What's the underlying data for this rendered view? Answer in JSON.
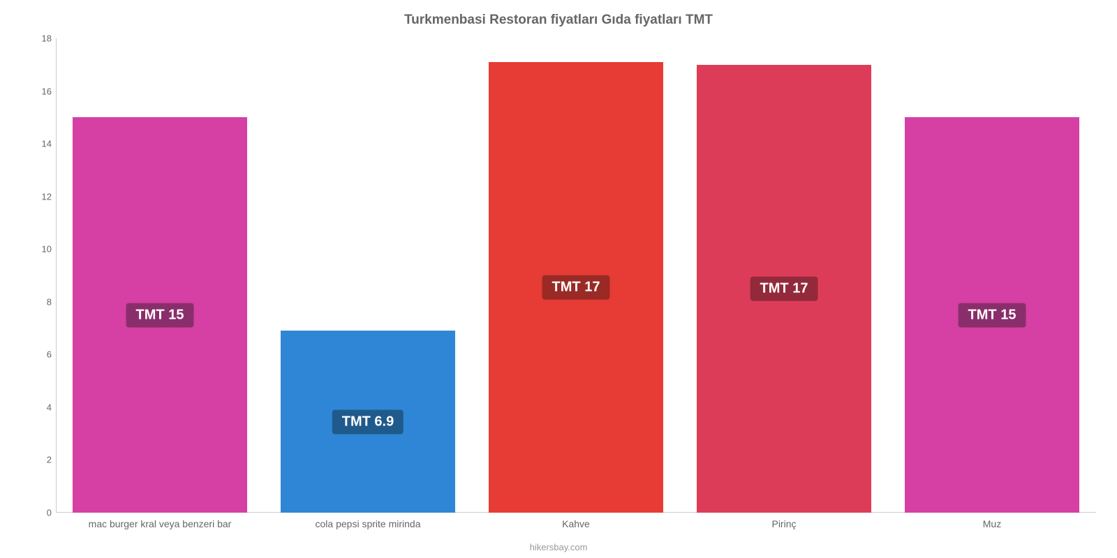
{
  "chart": {
    "type": "bar",
    "title": "Turkmenbasi Restoran fiyatları Gıda fiyatları TMT",
    "title_color": "#666666",
    "title_fontsize": 19,
    "background_color": "#ffffff",
    "axis_line_color": "#cccccc",
    "y": {
      "min": 0,
      "max": 18,
      "tick_step": 2,
      "ticks": [
        0,
        2,
        4,
        6,
        8,
        10,
        12,
        14,
        16,
        18
      ],
      "label_color": "#666666",
      "label_fontsize": 13
    },
    "x": {
      "label_color": "#666666",
      "label_fontsize": 14
    },
    "bar_width_ratio": 0.84,
    "value_label_fontsize": 20,
    "value_label_text_color": "#ffffff",
    "categories": [
      {
        "name": "mac burger kral veya benzeri bar",
        "value": 15,
        "value_label": "TMT 15",
        "bar_color": "#d63fa4",
        "label_bg_color": "#8a2e6b"
      },
      {
        "name": "cola pepsi sprite mirinda",
        "value": 6.9,
        "value_label": "TMT 6.9",
        "bar_color": "#2f86d6",
        "label_bg_color": "#1f5a8c"
      },
      {
        "name": "Kahve",
        "value": 17.1,
        "value_label": "TMT 17",
        "bar_color": "#e73b35",
        "label_bg_color": "#9a2a26"
      },
      {
        "name": "Pirinç",
        "value": 17,
        "value_label": "TMT 17",
        "bar_color": "#dd3c58",
        "label_bg_color": "#922a3c"
      },
      {
        "name": "Muz",
        "value": 15,
        "value_label": "TMT 15",
        "bar_color": "#d63fa4",
        "label_bg_color": "#8a2e6b"
      }
    ],
    "attribution": "hikersbay.com",
    "attribution_color": "#999999",
    "attribution_fontsize": 13
  }
}
